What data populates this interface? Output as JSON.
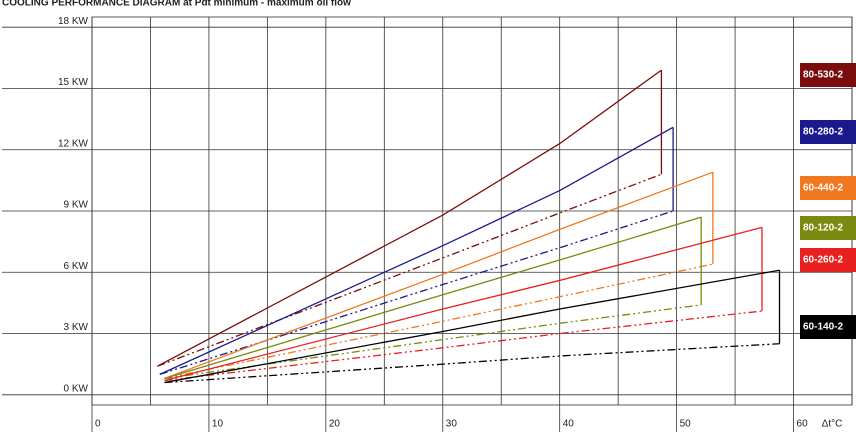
{
  "chart_data": {
    "type": "envelope",
    "title": "COOLING PERFORMANCE DIAGRAM at Pdt minimum - maximum oil flow",
    "xlabel": "Δt°C",
    "xlim": [
      0,
      65
    ],
    "ylim": [
      -0.5,
      18.5
    ],
    "xticks": [
      0,
      10,
      20,
      30,
      40,
      50,
      60
    ],
    "xgrid": [
      5,
      15,
      25,
      35,
      45,
      55,
      65
    ],
    "yticks": [
      {
        "value": 0,
        "label": "0 KW"
      },
      {
        "value": 3,
        "label": "3 KW"
      },
      {
        "value": 6,
        "label": "6 KW"
      },
      {
        "value": 9,
        "label": "9 KW"
      },
      {
        "value": 12,
        "label": "12 KW"
      },
      {
        "value": 15,
        "label": "15 KW"
      },
      {
        "value": 18,
        "label": "18 KW"
      }
    ],
    "grid": true,
    "series": [
      {
        "name": "80-530-2",
        "color": "#7a0c0c",
        "x": [
          5.6,
          30,
          40,
          48.7
        ],
        "max": [
          1.4,
          8.8,
          12.3,
          15.9
        ],
        "min": [
          1.4,
          6.7,
          8.9,
          10.8
        ]
      },
      {
        "name": "80-280-2",
        "color": "#1a1a8c",
        "x": [
          5.8,
          30,
          40,
          49.7
        ],
        "max": [
          1.0,
          7.3,
          10.0,
          13.1
        ],
        "min": [
          1.0,
          5.4,
          7.2,
          9.0
        ]
      },
      {
        "name": "60-440-2",
        "color": "#f07820",
        "x": [
          6.2,
          30,
          40,
          53.1
        ],
        "max": [
          0.8,
          5.9,
          8.1,
          10.9
        ],
        "min": [
          0.8,
          3.6,
          4.8,
          6.4
        ]
      },
      {
        "name": "80-120-2",
        "color": "#7a8a10",
        "x": [
          6.2,
          30,
          40,
          52.1
        ],
        "max": [
          0.8,
          4.9,
          6.6,
          8.7
        ],
        "min": [
          0.8,
          2.7,
          3.5,
          4.4
        ]
      },
      {
        "name": "60-260-2",
        "color": "#e82020",
        "x": [
          6.2,
          30,
          40,
          57.3
        ],
        "max": [
          0.7,
          4.2,
          5.6,
          8.2
        ],
        "min": [
          0.7,
          2.3,
          3.0,
          4.1
        ]
      },
      {
        "name": "60-140-2",
        "color": "#000000",
        "x": [
          6.2,
          30,
          40,
          58.8
        ],
        "max": [
          0.6,
          3.1,
          4.2,
          6.1
        ],
        "min": [
          0.6,
          1.5,
          1.9,
          2.5
        ]
      }
    ]
  }
}
